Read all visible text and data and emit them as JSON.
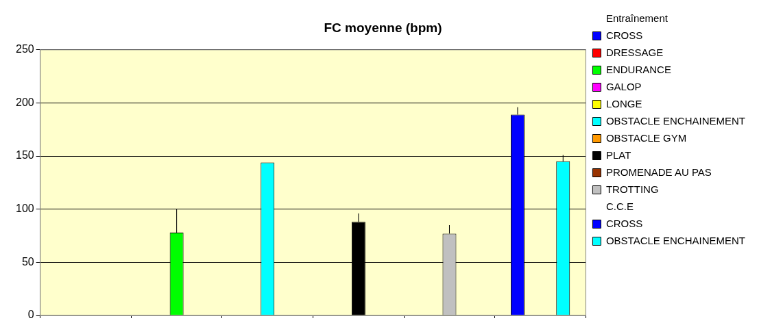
{
  "chart_data": {
    "type": "bar",
    "title": "FC moyenne (bpm)",
    "legend_title": "Entraînement",
    "annotations": [
      "C.C.E"
    ],
    "categories": [
      null,
      null,
      null,
      null,
      null,
      null
    ],
    "series": [
      {
        "name": "CROSS",
        "color": "#0000ff",
        "values": [
          null,
          null,
          null,
          null,
          null,
          null
        ]
      },
      {
        "name": "DRESSAGE",
        "color": "#ff0000",
        "values": [
          null,
          null,
          null,
          null,
          null,
          null
        ]
      },
      {
        "name": "ENDURANCE",
        "color": "#00ff00",
        "values": [
          null,
          78,
          null,
          null,
          null,
          null
        ],
        "errors": [
          null,
          [
            78,
            100
          ],
          null,
          null,
          null,
          null
        ]
      },
      {
        "name": "GALOP",
        "color": "#ff00ff",
        "values": [
          null,
          null,
          null,
          null,
          null,
          null
        ]
      },
      {
        "name": "LONGE",
        "color": "#ffff00",
        "values": [
          null,
          null,
          null,
          null,
          null,
          null
        ]
      },
      {
        "name": "OBSTACLE ENCHAINEMENT",
        "color": "#00ffff",
        "values": [
          null,
          null,
          144,
          null,
          null,
          null
        ]
      },
      {
        "name": "OBSTACLE GYM",
        "color": "#ff9900",
        "values": [
          null,
          null,
          null,
          null,
          null,
          null
        ]
      },
      {
        "name": "PLAT",
        "color": "#000000",
        "values": [
          null,
          null,
          null,
          88,
          null,
          null
        ],
        "errors": [
          null,
          null,
          null,
          [
            88,
            96
          ],
          null,
          null
        ]
      },
      {
        "name": "PROMENADE AU PAS",
        "color": "#993300",
        "values": [
          null,
          null,
          null,
          null,
          null,
          null
        ]
      },
      {
        "name": "TROTTING",
        "color": "#c0c0c0",
        "values": [
          null,
          null,
          null,
          null,
          77,
          null
        ],
        "errors": [
          null,
          null,
          null,
          null,
          [
            77,
            85
          ],
          null
        ]
      },
      {
        "name": "CROSS",
        "color": "#0000ff",
        "values": [
          null,
          null,
          null,
          null,
          null,
          189
        ],
        "errors": [
          null,
          null,
          null,
          null,
          null,
          [
            189,
            196
          ]
        ]
      },
      {
        "name": "OBSTACLE ENCHAINEMENT",
        "color": "#00ffff",
        "values": [
          null,
          null,
          null,
          null,
          null,
          145
        ],
        "errors": [
          null,
          null,
          null,
          null,
          null,
          [
            145,
            151
          ]
        ]
      }
    ],
    "ylim": [
      0,
      250
    ],
    "yticks": [
      0,
      50,
      100,
      150,
      200,
      250
    ],
    "grid": "y",
    "legend": "right"
  }
}
